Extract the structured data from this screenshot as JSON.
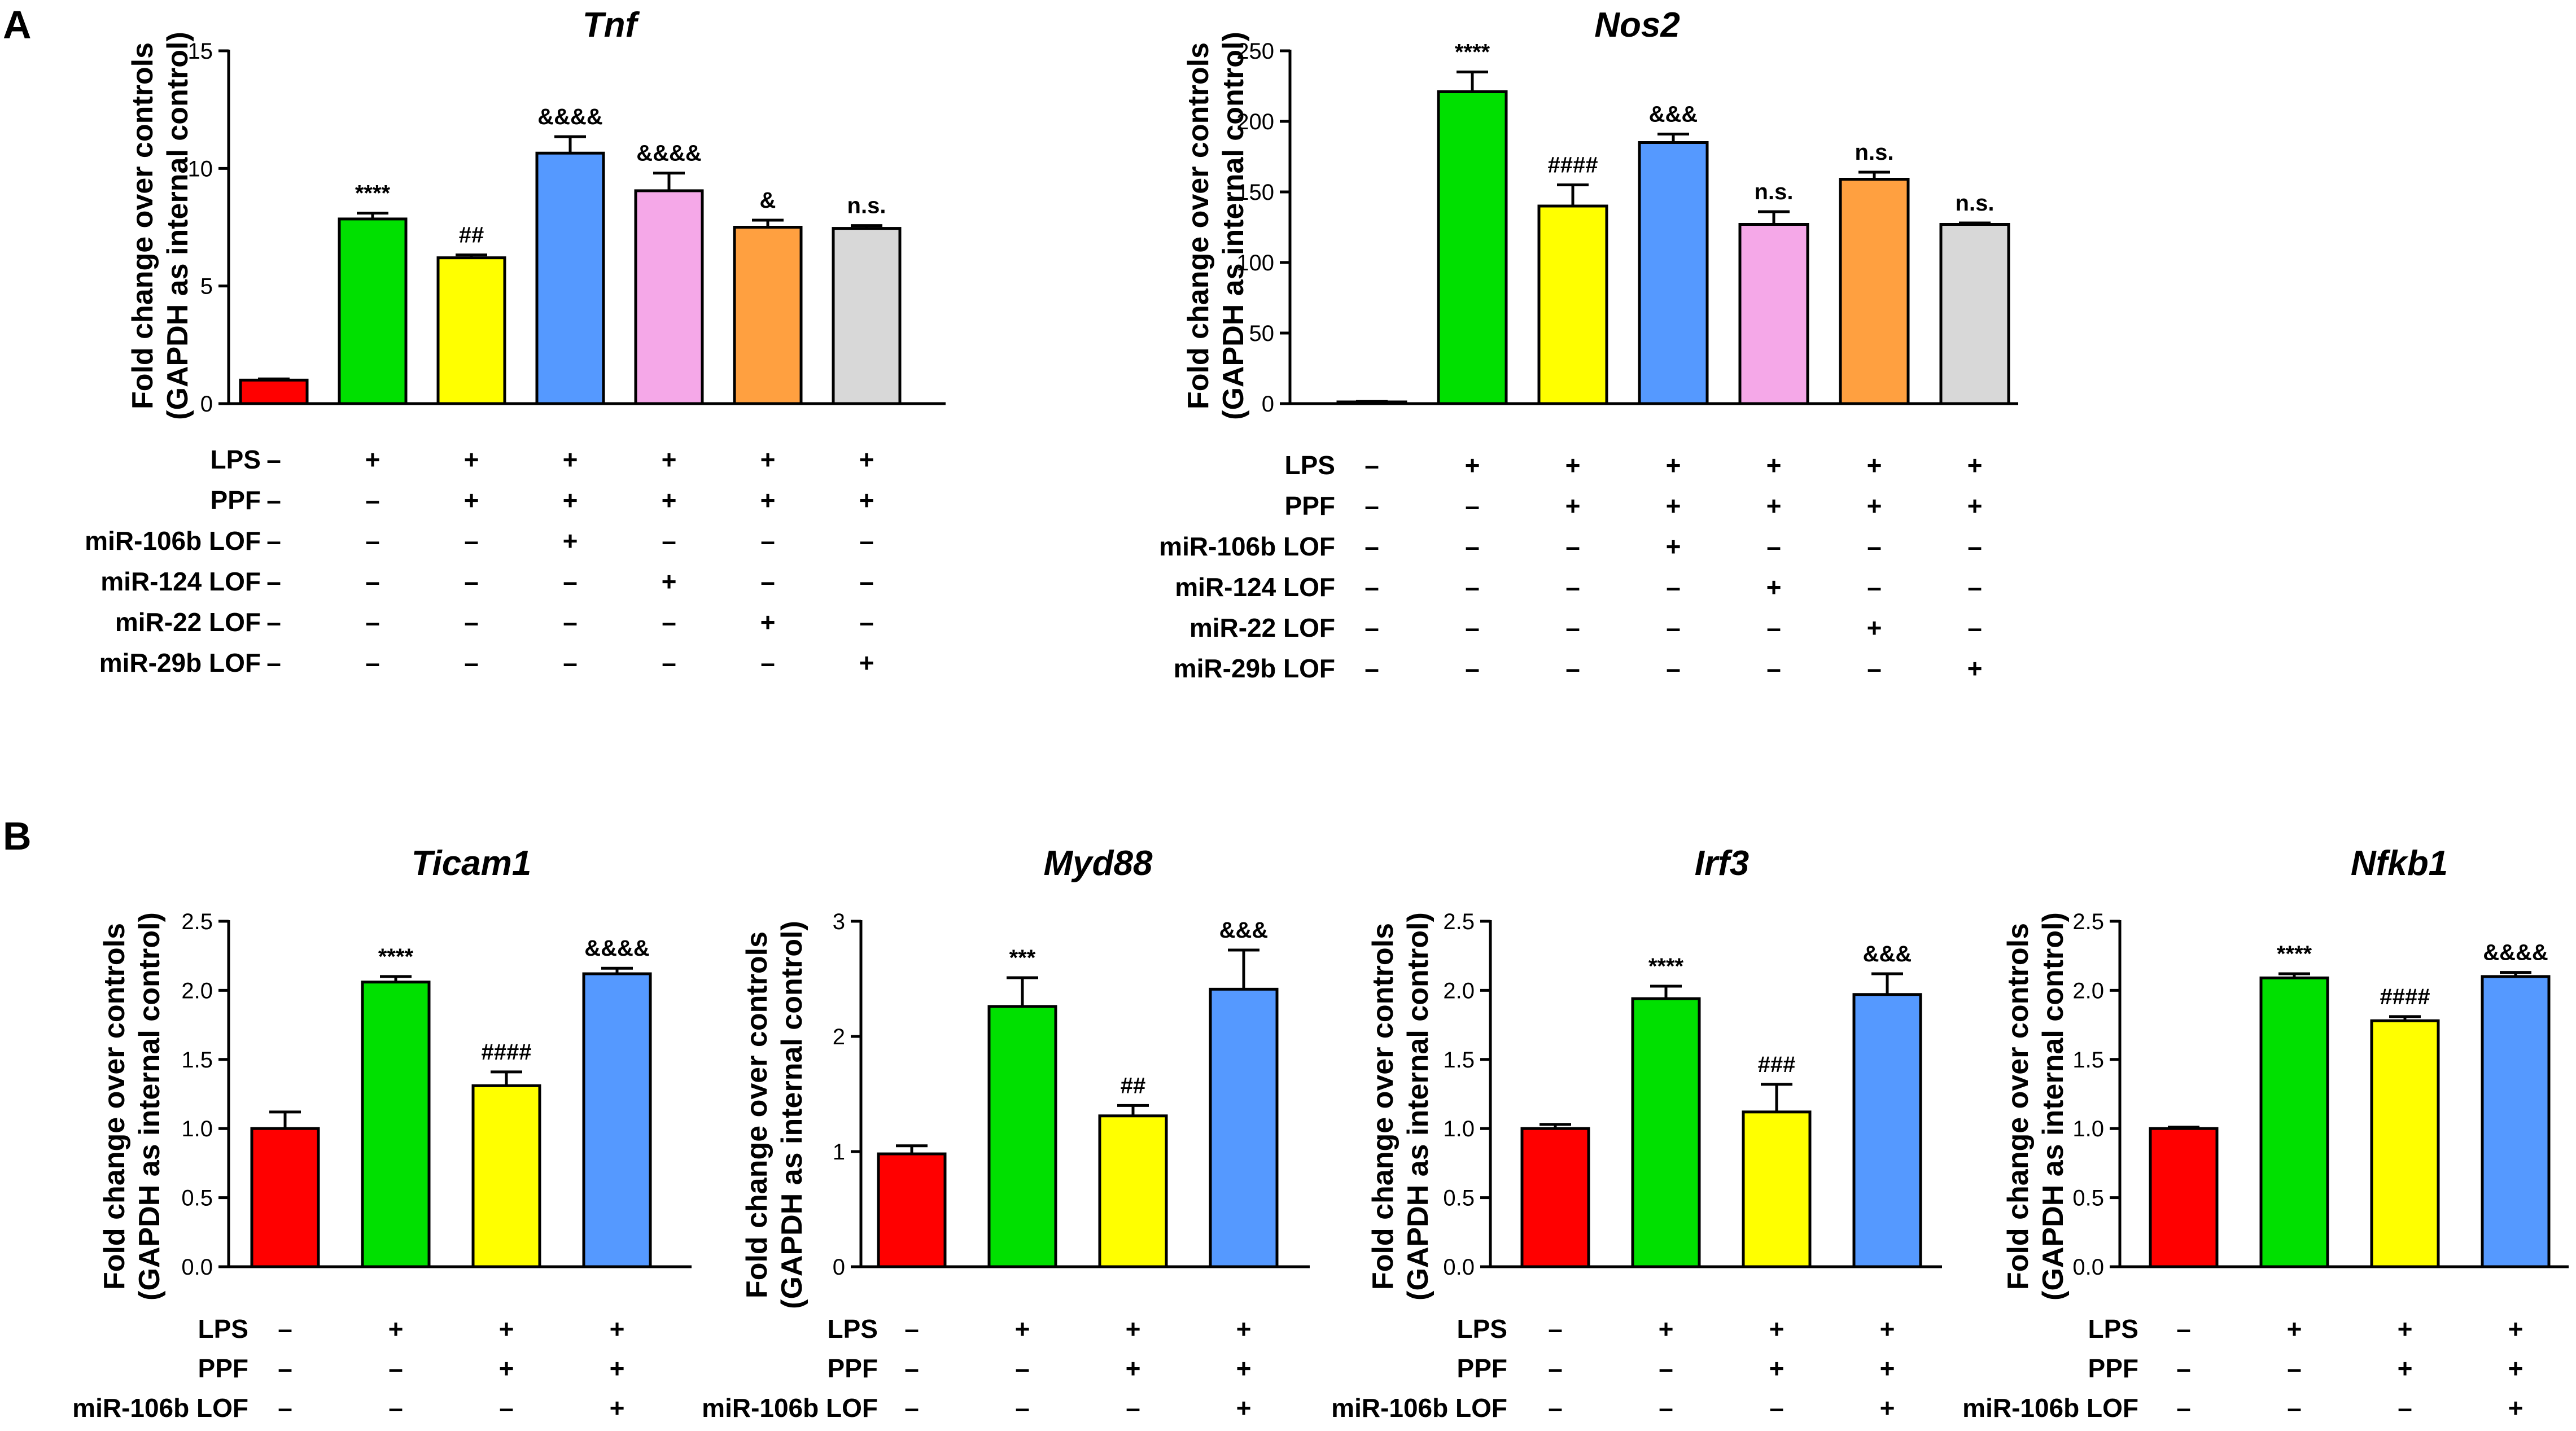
{
  "panels": [
    {
      "label": "A"
    },
    {
      "label": "B"
    }
  ],
  "bar_colors": [
    "#ff0000",
    "#00e000",
    "#ffff00",
    "#5599ff",
    "#f5a8e8",
    "#ffa040",
    "#d8d8d8"
  ],
  "chart_data": [
    {
      "type": "bar",
      "panel": "A",
      "title": "Tnf",
      "ylabel": [
        "Fold change over controls",
        "(GAPDH as internal control)"
      ],
      "ylim": [
        0,
        15
      ],
      "yticks": [
        0,
        5,
        10,
        15
      ],
      "ytick_labels": [
        "0",
        "5",
        "10",
        "15"
      ],
      "categories": [
        "Control",
        "LPS",
        "LPS+PPF",
        "LPS+PPF+miR-106b LOF",
        "LPS+PPF+miR-124 LOF",
        "LPS+PPF+miR-22 LOF",
        "LPS+PPF+miR-29b LOF"
      ],
      "values": [
        1.0,
        7.85,
        6.2,
        10.65,
        9.05,
        7.5,
        7.45
      ],
      "errors": [
        0.05,
        0.25,
        0.12,
        0.7,
        0.75,
        0.3,
        0.12
      ],
      "annotations": [
        "",
        "****",
        "##",
        "&&&&",
        "&&&&",
        "&",
        "n.s."
      ],
      "conditions": [
        {
          "label": "LPS",
          "signs": [
            "–",
            "+",
            "+",
            "+",
            "+",
            "+",
            "+"
          ]
        },
        {
          "label": "PPF",
          "signs": [
            "–",
            "–",
            "+",
            "+",
            "+",
            "+",
            "+"
          ]
        },
        {
          "label": "miR-106b LOF",
          "signs": [
            "–",
            "–",
            "–",
            "+",
            "–",
            "–",
            "–"
          ]
        },
        {
          "label": "miR-124 LOF",
          "signs": [
            "–",
            "–",
            "–",
            "–",
            "+",
            "–",
            "–"
          ]
        },
        {
          "label": "miR-22 LOF",
          "signs": [
            "–",
            "–",
            "–",
            "–",
            "–",
            "+",
            "–"
          ]
        },
        {
          "label": "miR-29b LOF",
          "signs": [
            "–",
            "–",
            "–",
            "–",
            "–",
            "–",
            "+"
          ]
        }
      ]
    },
    {
      "type": "bar",
      "panel": "A",
      "title": "Nos2",
      "ylabel": [
        "Fold change over controls",
        "(GAPDH as internal control)"
      ],
      "ylim": [
        0,
        250
      ],
      "yticks": [
        0,
        50,
        100,
        150,
        200,
        250
      ],
      "ytick_labels": [
        "0",
        "50",
        "100",
        "150",
        "200",
        "250"
      ],
      "categories": [
        "Control",
        "LPS",
        "LPS+PPF",
        "LPS+PPF+miR-106b LOF",
        "LPS+PPF+miR-124 LOF",
        "LPS+PPF+miR-22 LOF",
        "LPS+PPF+miR-29b LOF"
      ],
      "values": [
        1,
        221,
        140,
        185,
        127,
        159,
        127
      ],
      "errors": [
        0.5,
        14,
        15,
        6,
        9,
        5,
        1
      ],
      "annotations": [
        "",
        "****",
        "####",
        "&&&",
        "n.s.",
        "n.s.",
        "n.s."
      ],
      "conditions": [
        {
          "label": "LPS",
          "signs": [
            "–",
            "+",
            "+",
            "+",
            "+",
            "+",
            "+"
          ]
        },
        {
          "label": "PPF",
          "signs": [
            "–",
            "–",
            "+",
            "+",
            "+",
            "+",
            "+"
          ]
        },
        {
          "label": "miR-106b LOF",
          "signs": [
            "–",
            "–",
            "–",
            "+",
            "–",
            "–",
            "–"
          ]
        },
        {
          "label": "miR-124 LOF",
          "signs": [
            "–",
            "–",
            "–",
            "–",
            "+",
            "–",
            "–"
          ]
        },
        {
          "label": "miR-22 LOF",
          "signs": [
            "–",
            "–",
            "–",
            "–",
            "–",
            "+",
            "–"
          ]
        },
        {
          "label": "miR-29b LOF",
          "signs": [
            "–",
            "–",
            "–",
            "–",
            "–",
            "–",
            "+"
          ]
        }
      ]
    },
    {
      "type": "bar",
      "panel": "B",
      "title": "Ticam1",
      "ylabel": [
        "Fold change over controls",
        "(GAPDH as internal control)"
      ],
      "ylim": [
        0,
        2.5
      ],
      "yticks": [
        0,
        0.5,
        1.0,
        1.5,
        2.0,
        2.5
      ],
      "ytick_labels": [
        "0.0",
        "0.5",
        "1.0",
        "1.5",
        "2.0",
        "2.5"
      ],
      "categories": [
        "Control",
        "LPS",
        "LPS+PPF",
        "LPS+PPF+miR-106b LOF"
      ],
      "values": [
        1.0,
        2.06,
        1.31,
        2.12
      ],
      "errors": [
        0.12,
        0.04,
        0.1,
        0.04
      ],
      "annotations": [
        "",
        "****",
        "####",
        "&&&&"
      ],
      "conditions": [
        {
          "label": "LPS",
          "signs": [
            "–",
            "+",
            "+",
            "+"
          ]
        },
        {
          "label": "PPF",
          "signs": [
            "–",
            "–",
            "+",
            "+"
          ]
        },
        {
          "label": "miR-106b LOF",
          "signs": [
            "–",
            "–",
            "–",
            "+"
          ]
        }
      ]
    },
    {
      "type": "bar",
      "panel": "B",
      "title": "Myd88",
      "ylabel": [
        "Fold change over controls",
        "(GAPDH as internal control)"
      ],
      "ylim": [
        0,
        3
      ],
      "yticks": [
        0,
        1,
        2,
        3
      ],
      "ytick_labels": [
        "0",
        "1",
        "2",
        "3"
      ],
      "categories": [
        "Control",
        "LPS",
        "LPS+PPF",
        "LPS+PPF+miR-106b LOF"
      ],
      "values": [
        0.98,
        2.26,
        1.31,
        2.41
      ],
      "errors": [
        0.07,
        0.25,
        0.09,
        0.34
      ],
      "annotations": [
        "",
        "***",
        "##",
        "&&&"
      ],
      "conditions": [
        {
          "label": "LPS",
          "signs": [
            "–",
            "+",
            "+",
            "+"
          ]
        },
        {
          "label": "PPF",
          "signs": [
            "–",
            "–",
            "+",
            "+"
          ]
        },
        {
          "label": "miR-106b LOF",
          "signs": [
            "–",
            "–",
            "–",
            "+"
          ]
        }
      ]
    },
    {
      "type": "bar",
      "panel": "B",
      "title": "Irf3",
      "ylabel": [
        "Fold change over controls",
        "(GAPDH as internal control)"
      ],
      "ylim": [
        0,
        2.5
      ],
      "yticks": [
        0,
        0.5,
        1.0,
        1.5,
        2.0,
        2.5
      ],
      "ytick_labels": [
        "0.0",
        "0.5",
        "1.0",
        "1.5",
        "2.0",
        "2.5"
      ],
      "categories": [
        "Control",
        "LPS",
        "LPS+PPF",
        "LPS+PPF+miR-106b LOF"
      ],
      "values": [
        1.0,
        1.94,
        1.12,
        1.97
      ],
      "errors": [
        0.03,
        0.09,
        0.2,
        0.15
      ],
      "annotations": [
        "",
        "****",
        "###",
        "&&&"
      ],
      "conditions": [
        {
          "label": "LPS",
          "signs": [
            "–",
            "+",
            "+",
            "+"
          ]
        },
        {
          "label": "PPF",
          "signs": [
            "–",
            "–",
            "+",
            "+"
          ]
        },
        {
          "label": "miR-106b LOF",
          "signs": [
            "–",
            "–",
            "–",
            "+"
          ]
        }
      ]
    },
    {
      "type": "bar",
      "panel": "B",
      "title": "Nfkb1",
      "ylabel": [
        "Fold change over controls",
        "(GAPDH as internal control)"
      ],
      "ylim": [
        0,
        2.5
      ],
      "yticks": [
        0,
        0.5,
        1.0,
        1.5,
        2.0,
        2.5
      ],
      "ytick_labels": [
        "0.0",
        "0.5",
        "1.0",
        "1.5",
        "2.0",
        "2.5"
      ],
      "categories": [
        "Control",
        "LPS",
        "LPS+PPF",
        "LPS+PPF+miR-106b LOF"
      ],
      "values": [
        1.0,
        2.09,
        1.78,
        2.1
      ],
      "errors": [
        0.01,
        0.03,
        0.03,
        0.03
      ],
      "annotations": [
        "",
        "****",
        "####",
        "&&&&"
      ],
      "conditions": [
        {
          "label": "LPS",
          "signs": [
            "–",
            "+",
            "+",
            "+"
          ]
        },
        {
          "label": "PPF",
          "signs": [
            "–",
            "–",
            "+",
            "+"
          ]
        },
        {
          "label": "miR-106b LOF",
          "signs": [
            "–",
            "–",
            "–",
            "+"
          ]
        }
      ]
    }
  ]
}
